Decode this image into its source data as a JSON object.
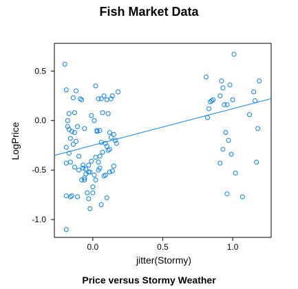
{
  "chart_data": {
    "type": "scatter",
    "title": "Fish Market Data",
    "subtitle": "Price versus Stormy Weather",
    "xlabel": "jitter(Stormy)",
    "ylabel": "LogPrice",
    "xlim": [
      -0.275,
      1.275
    ],
    "ylim": [
      -1.18,
      0.78
    ],
    "xticks": [
      0.0,
      0.5,
      1.0
    ],
    "xtick_labels": [
      "0.0",
      "0.5",
      "1.0"
    ],
    "yticks": [
      0.5,
      0.0,
      -0.5,
      -1.0
    ],
    "ytick_labels": [
      "0.5",
      "0.0",
      "-0.5",
      "-1.0"
    ],
    "grid": false,
    "colors": {
      "points": "#0080ff",
      "line": "#0080ff",
      "frame": "#000000"
    },
    "x": [
      -0.2,
      -0.19,
      -0.18,
      -0.17,
      -0.16,
      -0.19,
      -0.14,
      -0.12,
      -0.09,
      -0.13,
      -0.18,
      -0.15,
      -0.11,
      -0.16,
      -0.08,
      -0.19,
      -0.12,
      -0.14,
      -0.17,
      -0.06,
      -0.1,
      -0.13,
      -0.19,
      -0.16,
      -0.07,
      -0.05,
      -0.15,
      -0.11,
      -0.04,
      -0.06,
      -0.08,
      -0.02,
      -0.13,
      -0.17,
      -0.03,
      -0.05,
      -0.1,
      -0.07,
      -0.19,
      -0.06,
      -0.03,
      -0.02,
      0.01,
      0.04,
      0.0,
      0.02,
      0.05,
      0.08,
      0.06,
      0.1,
      0.12,
      0.09,
      0.14,
      0.15,
      0.11,
      0.16,
      0.13,
      0.17,
      0.03,
      0.07,
      0.1,
      0.05,
      0.12,
      0.15,
      -0.01,
      0.02,
      0.06,
      0.09,
      0.04,
      0.12,
      -0.03,
      0.0,
      0.03,
      0.07,
      0.11,
      0.14,
      0.18,
      0.02,
      0.06,
      -0.01,
      0.04,
      0.08,
      0.13,
      0.01,
      0.05,
      0.1,
      0.81,
      0.84,
      0.86,
      0.85,
      0.92,
      0.91,
      0.94,
      0.96,
      0.98,
      1.01,
      1.0,
      0.95,
      0.93,
      0.97,
      0.83,
      0.82,
      0.91,
      0.93,
      0.96,
      1.02,
      1.07,
      1.12,
      1.15,
      1.16,
      1.18,
      1.19,
      1.17,
      0.99
    ],
    "y": [
      0.57,
      0.31,
      -0.06,
      -0.09,
      -0.42,
      -0.27,
      0.23,
      0.3,
      0.22,
      0.08,
      0.0,
      -0.11,
      -0.06,
      -0.18,
      0.21,
      -0.43,
      -0.21,
      -0.24,
      -0.33,
      -0.08,
      -0.36,
      -0.47,
      -0.76,
      -0.77,
      -0.48,
      -0.49,
      -0.76,
      -0.77,
      -0.73,
      -0.58,
      -0.6,
      -0.89,
      -0.12,
      0.07,
      -0.52,
      -0.54,
      -0.5,
      -0.45,
      -1.1,
      -0.6,
      -0.45,
      -0.52,
      -0.55,
      -0.5,
      -0.67,
      -0.6,
      -0.48,
      -0.56,
      -0.85,
      -0.78,
      -0.52,
      -0.55,
      -0.51,
      -0.46,
      -0.3,
      -0.2,
      -0.17,
      -0.23,
      -0.1,
      -0.32,
      -0.26,
      -0.36,
      -0.29,
      -0.14,
      -0.41,
      -0.37,
      -0.22,
      -0.23,
      -0.42,
      -0.12,
      -0.79,
      -0.73,
      -0.11,
      0.08,
      0.07,
      0.25,
      0.29,
      0.35,
      0.22,
      0.05,
      0.22,
      0.25,
      0.22,
      0.0,
      -0.1,
      0.21,
      0.44,
      0.19,
      0.21,
      0.2,
      0.4,
      0.25,
      0.16,
      0.16,
      0.36,
      0.67,
      0.21,
      -0.12,
      -0.29,
      -0.2,
      0.12,
      0.03,
      -0.43,
      0.33,
      -0.74,
      -0.53,
      -0.77,
      0.06,
      0.29,
      0.2,
      -0.08,
      0.4,
      -0.42,
      -0.34
    ],
    "fit_line": {
      "intercept": -0.25,
      "slope": 0.37
    }
  }
}
